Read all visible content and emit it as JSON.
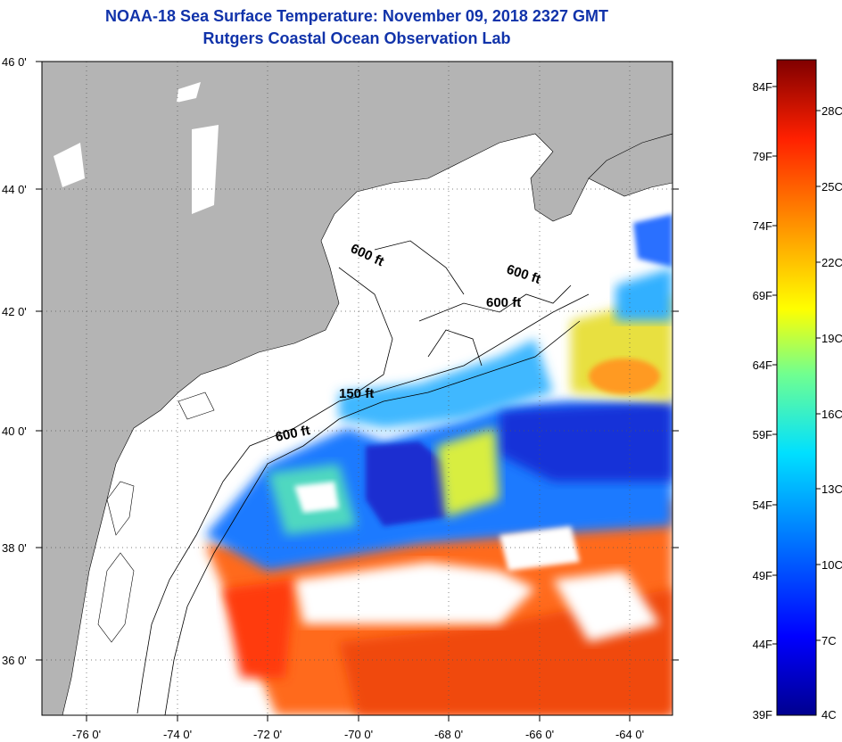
{
  "title": "NOAA-18 Sea Surface Temperature:  November 09, 2018 2327 GMT",
  "subtitle": "Rutgers Coastal Ocean Observation Lab",
  "lat_labels": [
    "46 0'",
    "44 0'",
    "42 0'",
    "40 0'",
    "38 0'",
    "36 0'"
  ],
  "lon_labels": [
    "-76 0'",
    "-74 0'",
    "-72 0'",
    "-70 0'",
    "-68 0'",
    "-66 0'",
    "-64 0'"
  ],
  "contour_labels": [
    "600 ft",
    "600 ft",
    "600 ft",
    "150 ft",
    "600 ft"
  ],
  "colorbar": {
    "fahrenheit": [
      "84F",
      "79F",
      "74F",
      "69F",
      "64F",
      "59F",
      "54F",
      "49F",
      "44F",
      "39F"
    ],
    "celsius": [
      "28C",
      "25C",
      "22C",
      "19C",
      "16C",
      "13C",
      "10C",
      "7C",
      "4C"
    ]
  },
  "colors": {
    "title": "#1133aa",
    "land": "#b4b4b4",
    "cloud": "#ffffff"
  }
}
